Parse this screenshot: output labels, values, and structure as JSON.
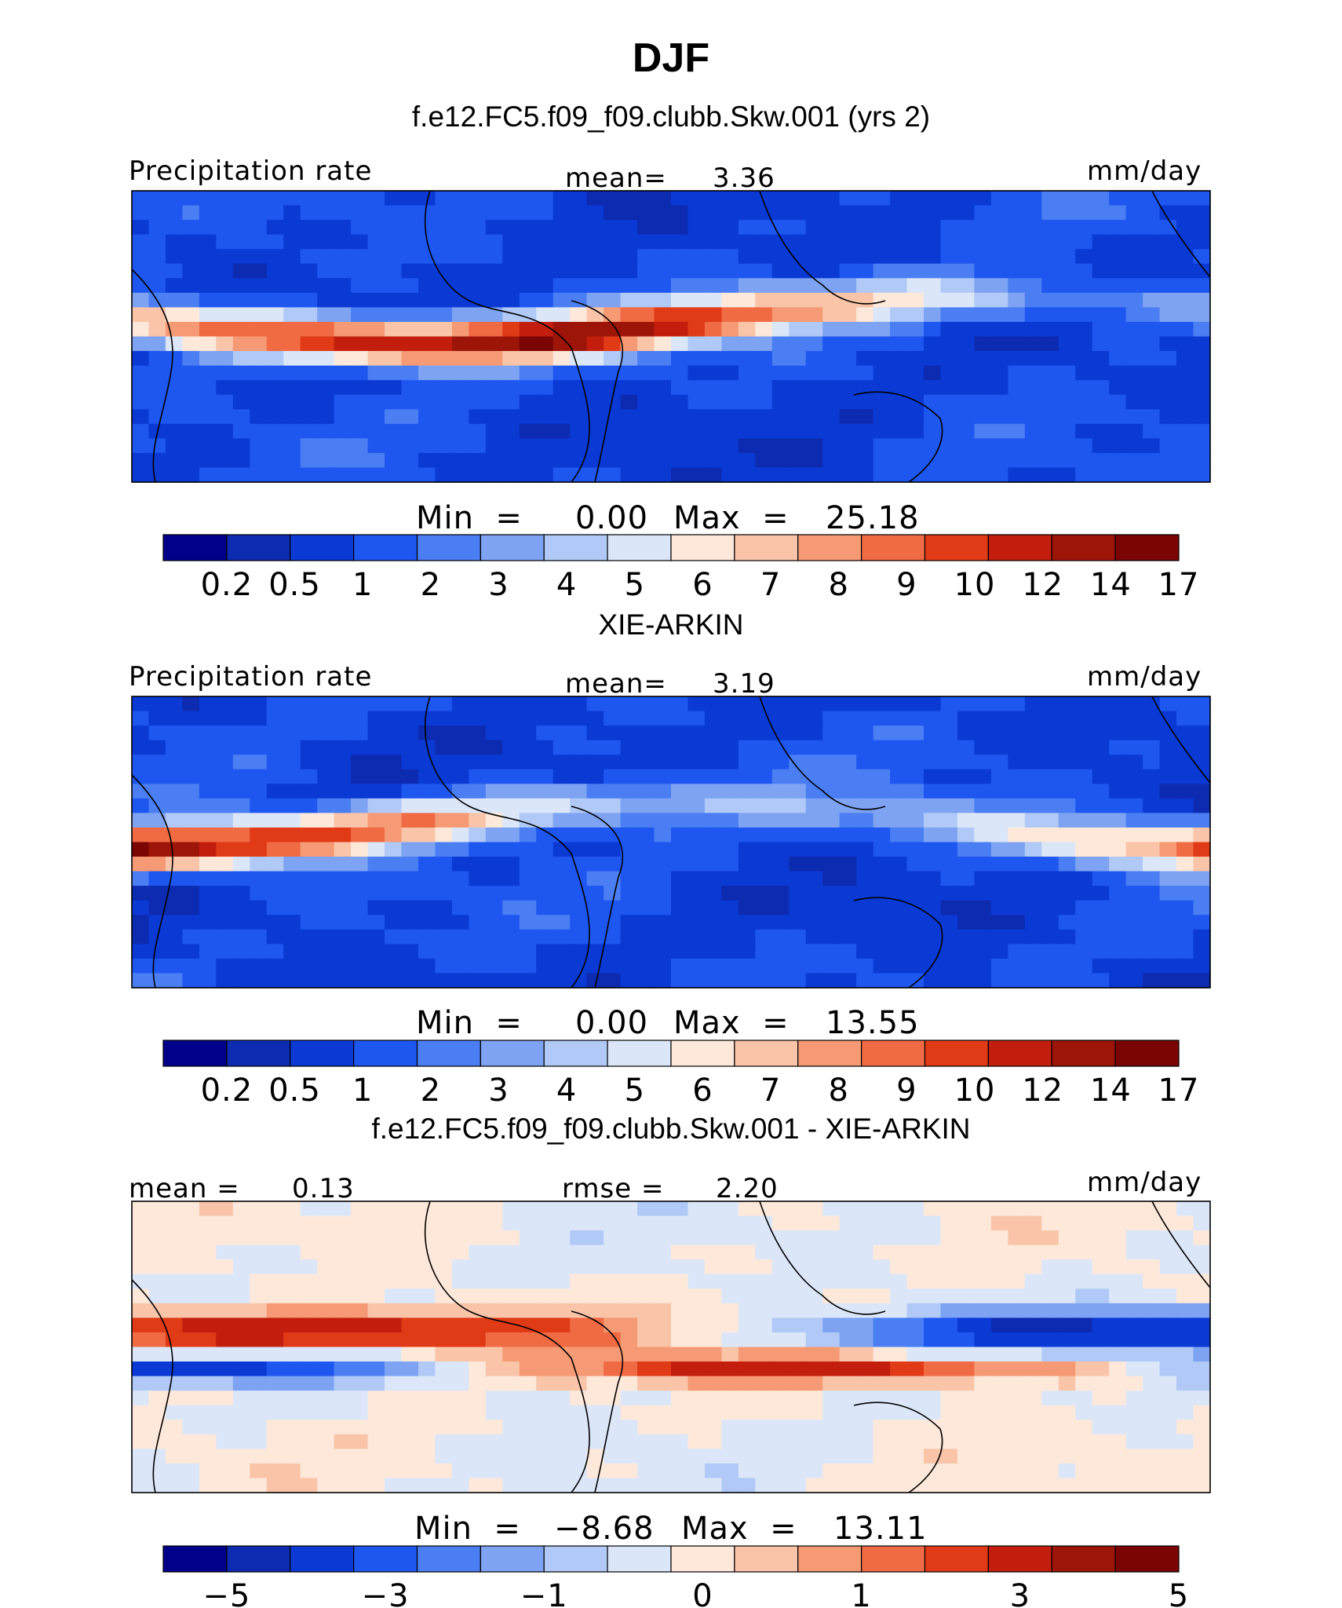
{
  "page_title": "DJF",
  "chart_data": [
    {
      "type": "heatmap",
      "heading": "f.e12.FC5.f09_f09.clubb.Skw.001 (yrs 2)",
      "left_label": "Precipitation rate",
      "stat_label": "mean=",
      "stat_value": "3.36",
      "units": "mm/day",
      "minmax_label": "Min  =",
      "min": "0.00",
      "max_label": "Max  =",
      "max": "25.18",
      "colorbar_ticks": [
        "0.2",
        "0.5",
        "1",
        "2",
        "3",
        "4",
        "5",
        "6",
        "7",
        "8",
        "9",
        "10",
        "12",
        "14",
        "17"
      ],
      "colorbar_levels": [
        0.2,
        0.5,
        1,
        2,
        3,
        4,
        5,
        6,
        7,
        8,
        9,
        10,
        12,
        14,
        17
      ]
    },
    {
      "type": "heatmap",
      "heading": "XIE-ARKIN",
      "left_label": "Precipitation rate",
      "stat_label": "mean=",
      "stat_value": "3.19",
      "units": "mm/day",
      "minmax_label": "Min  =",
      "min": "0.00",
      "max_label": "Max  =",
      "max": "13.55",
      "colorbar_ticks": [
        "0.2",
        "0.5",
        "1",
        "2",
        "3",
        "4",
        "5",
        "6",
        "7",
        "8",
        "9",
        "10",
        "12",
        "14",
        "17"
      ],
      "colorbar_levels": [
        0.2,
        0.5,
        1,
        2,
        3,
        4,
        5,
        6,
        7,
        8,
        9,
        10,
        12,
        14,
        17
      ]
    },
    {
      "type": "heatmap",
      "heading": "f.e12.FC5.f09_f09.clubb.Skw.001 - XIE-ARKIN",
      "left_label": "mean =",
      "left_value": "0.13",
      "stat_label": "rmse =",
      "stat_value": "2.20",
      "units": "mm/day",
      "minmax_label": "Min  =",
      "min": "−8.68",
      "max_label": "Max  =",
      "max": "13.11",
      "colorbar_ticks": [
        "−5",
        "−3",
        "−1",
        "0",
        "1",
        "3",
        "5"
      ],
      "colorbar_levels": [
        -5,
        -3,
        -1,
        0,
        1,
        3,
        5
      ]
    }
  ],
  "colormap": [
    "#00008b",
    "#0d2bb0",
    "#0a39d4",
    "#1e56f0",
    "#4a7ef2",
    "#7ea3f2",
    "#b0c9f6",
    "#dbe7f9",
    "#fde8da",
    "#f9c4a8",
    "#f59a74",
    "#f06a44",
    "#e03a17",
    "#c31e0d",
    "#9c1508",
    "#7a0504"
  ]
}
